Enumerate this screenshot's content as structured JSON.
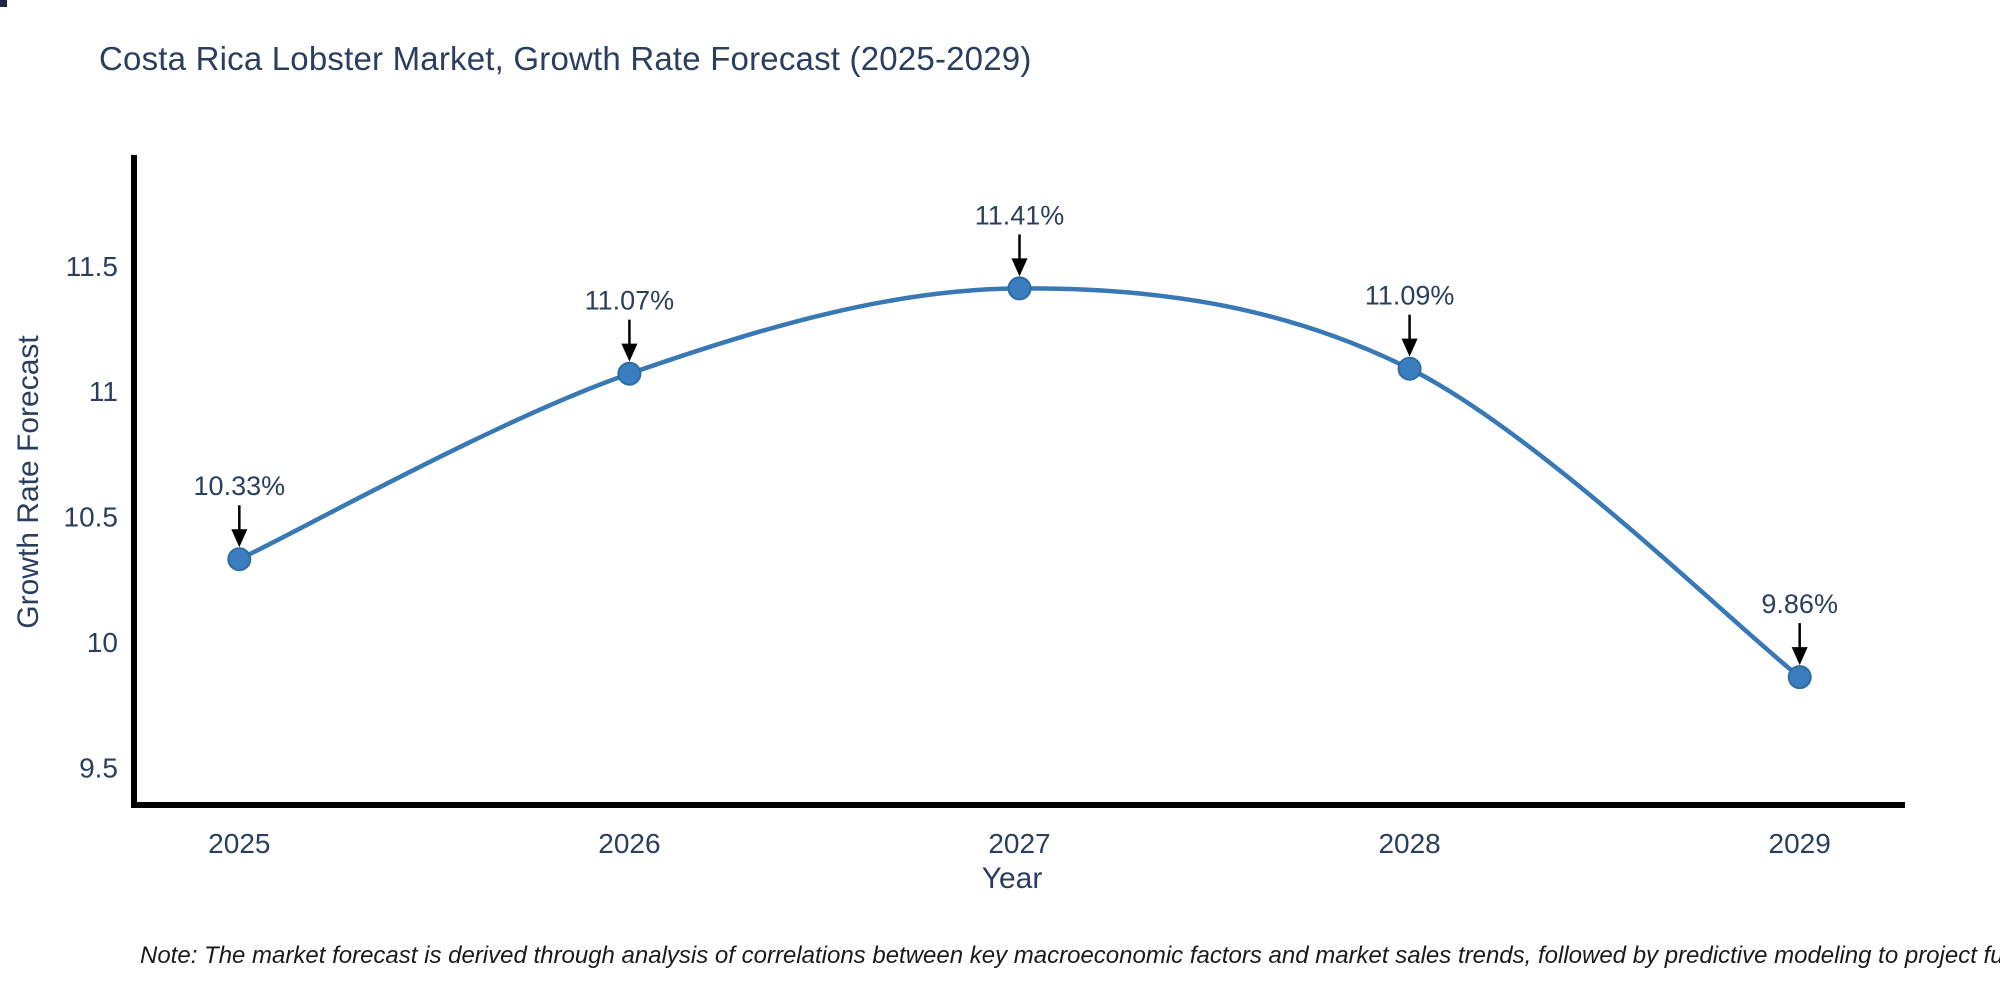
{
  "page": {
    "background": "#ffffff"
  },
  "title": {
    "text": "Costa Rica Lobster Market, Growth Rate Forecast (2025-2029)",
    "color": "#2a3f5f"
  },
  "note": {
    "text": "Note: The market forecast is derived through analysis of correlations between key macroeconomic factors and market sales trends, followed by predictive modeling to project future sales"
  },
  "chart_data": {
    "type": "line",
    "line_shape": "spline",
    "title": "Costa Rica Lobster Market, Growth Rate Forecast (2025-2029)",
    "xlabel": "Year",
    "ylabel": "Growth Rate Forecast",
    "x": [
      2025,
      2026,
      2027,
      2028,
      2029
    ],
    "series": [
      {
        "name": "Growth Rate Forecast",
        "values": [
          10.33,
          11.07,
          11.41,
          11.09,
          9.86
        ]
      }
    ],
    "point_labels": [
      "10.33%",
      "11.07%",
      "11.41%",
      "11.09%",
      "9.86%"
    ],
    "xticks": [
      2025,
      2026,
      2027,
      2028,
      2029
    ],
    "yticks": [
      9.5,
      10,
      10.5,
      11,
      11.5
    ],
    "xlim": [
      2024.73,
      2029.27
    ],
    "ylim": [
      9.35,
      11.93
    ],
    "grid": false,
    "legend": "none",
    "line_color": "#3878b4",
    "marker_color": "#3a7ebf",
    "marker_edge_color": "#2e6da4",
    "axis_color": "#000000",
    "tick_color": "#2a3f5f",
    "annotation_color": "#2a3f5f",
    "arrow_color": "#000000"
  }
}
